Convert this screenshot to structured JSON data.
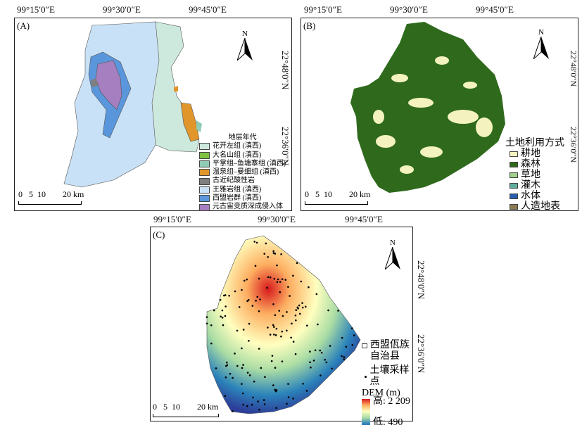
{
  "coords": {
    "lon": [
      "99°15′0″E",
      "99°30′0″E",
      "99°45′0″E"
    ],
    "lat": [
      "22°48′0″N",
      "22°36′0″N"
    ]
  },
  "north_label": "N",
  "scale": {
    "ticks": [
      "0",
      "5",
      "10",
      "20 km"
    ]
  },
  "panelA": {
    "tag": "(A)",
    "legend_title": "地层年代",
    "legend": [
      {
        "label": "花开左组 (滇西)",
        "color": "#cde8dc"
      },
      {
        "label": "大名山组 (滇西)",
        "color": "#7fc241"
      },
      {
        "label": "平掌组–鱼塘寨组 (滇西)",
        "color": "#8fcbb5"
      },
      {
        "label": "温泉组–曼细组 (滇西)",
        "color": "#e0962a"
      },
      {
        "label": "古近纪酸性岩",
        "color": "#7f7f7f"
      },
      {
        "label": "王雅岩组 (滇西)",
        "color": "#c9e1f6"
      },
      {
        "label": "西盟岩群 (滇西)",
        "color": "#5a96dc"
      },
      {
        "label": "元古宙变质深成侵入体",
        "color": "#a67fc0"
      }
    ]
  },
  "panelB": {
    "tag": "(B)",
    "legend_title": "土地利用方式",
    "legend": [
      {
        "label": "耕地",
        "color": "#f4f3bf"
      },
      {
        "label": "森林",
        "color": "#2f6a1c"
      },
      {
        "label": "草地",
        "color": "#9fd08a"
      },
      {
        "label": "灌木",
        "color": "#5fae9c"
      },
      {
        "label": "水体",
        "color": "#2a5cb0"
      },
      {
        "label": "人造地表",
        "color": "#8c7b50"
      }
    ]
  },
  "panelC": {
    "tag": "(C)",
    "county_label": "西盟佤族自治县",
    "sample_label": "土壤采样点",
    "dem_title": "DEM (m)",
    "dem_high": "高: 2 209",
    "dem_low": "低: 490",
    "dem_colors": [
      "#d7191c",
      "#fdae61",
      "#ffffbf",
      "#abdda4",
      "#2b83ba",
      "#2c3f9a"
    ]
  }
}
